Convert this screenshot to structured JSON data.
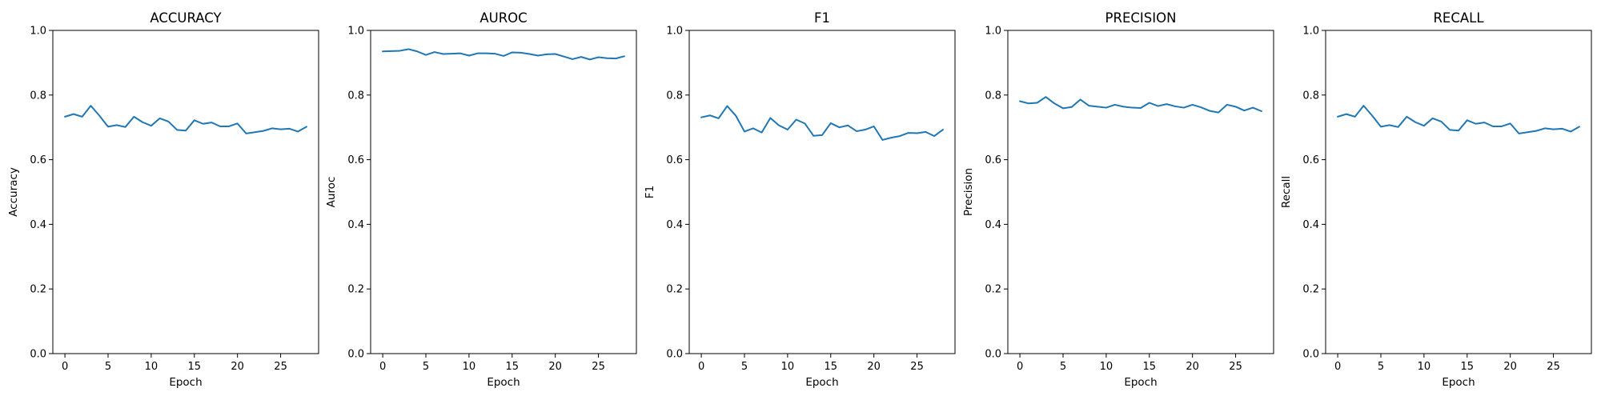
{
  "chart_data": [
    {
      "type": "line",
      "title": "ACCURACY",
      "xlabel": "Epoch",
      "ylabel": "Accuracy",
      "xlim": [
        -1.4,
        29.4
      ],
      "ylim": [
        0.0,
        1.0
      ],
      "xticks": [
        0,
        5,
        10,
        15,
        20,
        25
      ],
      "yticks": [
        0.0,
        0.2,
        0.4,
        0.6,
        0.8,
        1.0
      ],
      "grid": false,
      "x": [
        0,
        1,
        2,
        3,
        4,
        5,
        6,
        7,
        8,
        9,
        10,
        11,
        12,
        13,
        14,
        15,
        16,
        17,
        18,
        19,
        20,
        21,
        22,
        23,
        24,
        25,
        26,
        27,
        28
      ],
      "series": [
        {
          "color": "#1f77b4",
          "values": [
            0.733,
            0.741,
            0.733,
            0.767,
            0.736,
            0.702,
            0.707,
            0.701,
            0.733,
            0.716,
            0.705,
            0.728,
            0.718,
            0.692,
            0.69,
            0.722,
            0.711,
            0.715,
            0.703,
            0.703,
            0.712,
            0.681,
            0.685,
            0.689,
            0.697,
            0.694,
            0.696,
            0.687,
            0.702
          ]
        }
      ]
    },
    {
      "type": "line",
      "title": "AUROC",
      "xlabel": "Epoch",
      "ylabel": "Auroc",
      "xlim": [
        -1.4,
        29.4
      ],
      "ylim": [
        0.0,
        1.0
      ],
      "xticks": [
        0,
        5,
        10,
        15,
        20,
        25
      ],
      "yticks": [
        0.0,
        0.2,
        0.4,
        0.6,
        0.8,
        1.0
      ],
      "grid": false,
      "x": [
        0,
        1,
        2,
        3,
        4,
        5,
        6,
        7,
        8,
        9,
        10,
        11,
        12,
        13,
        14,
        15,
        16,
        17,
        18,
        19,
        20,
        21,
        22,
        23,
        24,
        25,
        26,
        27,
        28
      ],
      "series": [
        {
          "color": "#1f77b4",
          "values": [
            0.935,
            0.936,
            0.937,
            0.942,
            0.935,
            0.924,
            0.933,
            0.927,
            0.928,
            0.929,
            0.922,
            0.929,
            0.929,
            0.928,
            0.921,
            0.932,
            0.931,
            0.927,
            0.922,
            0.926,
            0.927,
            0.919,
            0.911,
            0.918,
            0.91,
            0.917,
            0.914,
            0.913,
            0.92
          ]
        }
      ]
    },
    {
      "type": "line",
      "title": "F1",
      "xlabel": "Epoch",
      "ylabel": "F1",
      "xlim": [
        -1.4,
        29.4
      ],
      "ylim": [
        0.0,
        1.0
      ],
      "xticks": [
        0,
        5,
        10,
        15,
        20,
        25
      ],
      "yticks": [
        0.0,
        0.2,
        0.4,
        0.6,
        0.8,
        1.0
      ],
      "grid": false,
      "x": [
        0,
        1,
        2,
        3,
        4,
        5,
        6,
        7,
        8,
        9,
        10,
        11,
        12,
        13,
        14,
        15,
        16,
        17,
        18,
        19,
        20,
        21,
        22,
        23,
        24,
        25,
        26,
        27,
        28
      ],
      "series": [
        {
          "color": "#1f77b4",
          "values": [
            0.731,
            0.737,
            0.728,
            0.766,
            0.736,
            0.687,
            0.697,
            0.684,
            0.729,
            0.706,
            0.693,
            0.724,
            0.712,
            0.674,
            0.676,
            0.713,
            0.7,
            0.706,
            0.688,
            0.693,
            0.703,
            0.661,
            0.668,
            0.673,
            0.683,
            0.682,
            0.686,
            0.673,
            0.693
          ]
        }
      ]
    },
    {
      "type": "line",
      "title": "PRECISION",
      "xlabel": "Epoch",
      "ylabel": "Precision",
      "xlim": [
        -1.4,
        29.4
      ],
      "ylim": [
        0.0,
        1.0
      ],
      "xticks": [
        0,
        5,
        10,
        15,
        20,
        25
      ],
      "yticks": [
        0.0,
        0.2,
        0.4,
        0.6,
        0.8,
        1.0
      ],
      "grid": false,
      "x": [
        0,
        1,
        2,
        3,
        4,
        5,
        6,
        7,
        8,
        9,
        10,
        11,
        12,
        13,
        14,
        15,
        16,
        17,
        18,
        19,
        20,
        21,
        22,
        23,
        24,
        25,
        26,
        27,
        28
      ],
      "series": [
        {
          "color": "#1f77b4",
          "values": [
            0.781,
            0.774,
            0.776,
            0.794,
            0.774,
            0.759,
            0.763,
            0.786,
            0.767,
            0.764,
            0.761,
            0.77,
            0.764,
            0.761,
            0.76,
            0.776,
            0.766,
            0.772,
            0.765,
            0.761,
            0.77,
            0.762,
            0.751,
            0.746,
            0.77,
            0.764,
            0.752,
            0.761,
            0.75
          ]
        }
      ]
    },
    {
      "type": "line",
      "title": "RECALL",
      "xlabel": "Epoch",
      "ylabel": "Recall",
      "xlim": [
        -1.4,
        29.4
      ],
      "ylim": [
        0.0,
        1.0
      ],
      "xticks": [
        0,
        5,
        10,
        15,
        20,
        25
      ],
      "yticks": [
        0.0,
        0.2,
        0.4,
        0.6,
        0.8,
        1.0
      ],
      "grid": false,
      "x": [
        0,
        1,
        2,
        3,
        4,
        5,
        6,
        7,
        8,
        9,
        10,
        11,
        12,
        13,
        14,
        15,
        16,
        17,
        18,
        19,
        20,
        21,
        22,
        23,
        24,
        25,
        26,
        27,
        28
      ],
      "series": [
        {
          "color": "#1f77b4",
          "values": [
            0.733,
            0.741,
            0.733,
            0.767,
            0.736,
            0.702,
            0.707,
            0.701,
            0.733,
            0.716,
            0.705,
            0.728,
            0.718,
            0.692,
            0.69,
            0.722,
            0.711,
            0.715,
            0.703,
            0.703,
            0.712,
            0.681,
            0.685,
            0.689,
            0.697,
            0.694,
            0.696,
            0.687,
            0.702
          ]
        }
      ]
    }
  ]
}
